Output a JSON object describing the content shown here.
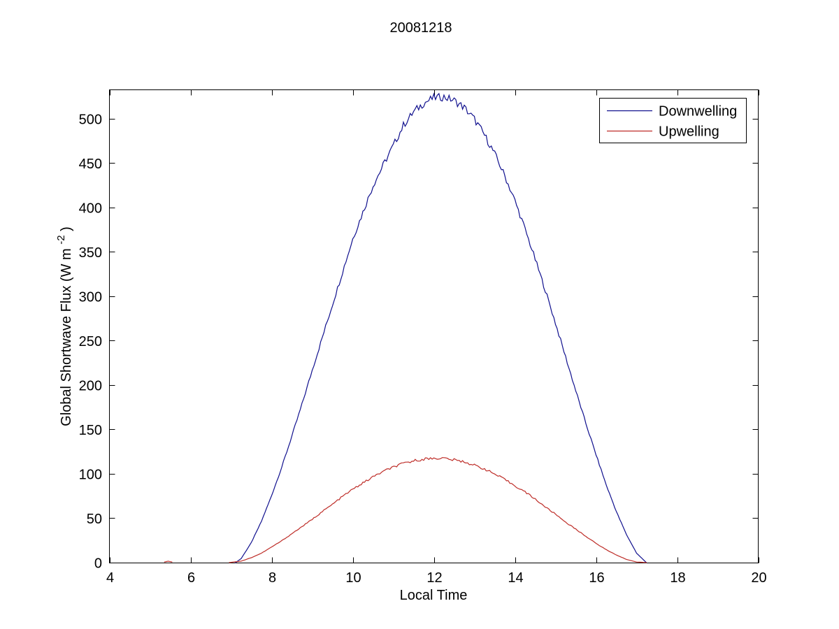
{
  "page": {
    "background": "#ffffff"
  },
  "chart_data": {
    "type": "line",
    "title": "20081218",
    "xlabel": "Local Time",
    "ylabel": {
      "prefix": "Global Shortwave Flux (W m",
      "superscript": "-2",
      "suffix": ")"
    },
    "xlim": [
      4,
      20
    ],
    "ylim": [
      0,
      533
    ],
    "xticks": [
      4,
      6,
      8,
      10,
      12,
      14,
      16,
      18,
      20
    ],
    "yticks": [
      0,
      50,
      100,
      150,
      200,
      250,
      300,
      350,
      400,
      450,
      500
    ],
    "grid": false,
    "axis_color": "#000000",
    "legend": {
      "position": "top-right",
      "entries": [
        {
          "label": "Downwelling",
          "color": "#10108E"
        },
        {
          "label": "Upwelling",
          "color": "#BE2D28"
        }
      ]
    },
    "series": [
      {
        "name": "Downwelling",
        "color": "#10108E",
        "noise_amplitude": 4.5,
        "points": [
          [
            7.1,
            0
          ],
          [
            7.25,
            5
          ],
          [
            7.5,
            23
          ],
          [
            7.75,
            47
          ],
          [
            8,
            76
          ],
          [
            8.25,
            108
          ],
          [
            8.5,
            143
          ],
          [
            8.75,
            179
          ],
          [
            9,
            217
          ],
          [
            9.25,
            254
          ],
          [
            9.5,
            291
          ],
          [
            9.75,
            328
          ],
          [
            10,
            365
          ],
          [
            10.25,
            395
          ],
          [
            10.5,
            425
          ],
          [
            10.75,
            448
          ],
          [
            11,
            470
          ],
          [
            11.25,
            493
          ],
          [
            11.5,
            508
          ],
          [
            11.75,
            518
          ],
          [
            12,
            524
          ],
          [
            12.25,
            525
          ],
          [
            12.5,
            521
          ],
          [
            12.75,
            513
          ],
          [
            13,
            500
          ],
          [
            13.25,
            482
          ],
          [
            13.5,
            461
          ],
          [
            13.75,
            436
          ],
          [
            14,
            408
          ],
          [
            14.25,
            376
          ],
          [
            14.5,
            342
          ],
          [
            14.75,
            307
          ],
          [
            15,
            270
          ],
          [
            15.25,
            232
          ],
          [
            15.5,
            194
          ],
          [
            15.75,
            157
          ],
          [
            16,
            122
          ],
          [
            16.25,
            88
          ],
          [
            16.5,
            58
          ],
          [
            16.75,
            32
          ],
          [
            17,
            11
          ],
          [
            17.25,
            0
          ]
        ]
      },
      {
        "name": "Upwelling",
        "color": "#BE2D28",
        "noise_amplitude": 1.5,
        "points": [
          [
            5.35,
            1
          ],
          [
            5.45,
            2
          ],
          [
            5.55,
            1
          ],
          null,
          [
            6.95,
            0.5
          ],
          [
            7.25,
            2
          ],
          [
            7.5,
            6
          ],
          [
            7.75,
            11
          ],
          [
            8,
            18
          ],
          [
            8.25,
            25
          ],
          [
            8.5,
            33
          ],
          [
            8.75,
            41
          ],
          [
            9,
            49
          ],
          [
            9.25,
            58
          ],
          [
            9.5,
            66
          ],
          [
            9.75,
            75
          ],
          [
            10,
            83
          ],
          [
            10.25,
            90
          ],
          [
            10.5,
            97
          ],
          [
            10.75,
            103
          ],
          [
            11,
            108
          ],
          [
            11.25,
            112
          ],
          [
            11.5,
            115
          ],
          [
            11.75,
            117
          ],
          [
            12,
            118
          ],
          [
            12.25,
            118
          ],
          [
            12.5,
            116
          ],
          [
            12.75,
            114
          ],
          [
            13,
            110
          ],
          [
            13.25,
            106
          ],
          [
            13.5,
            100
          ],
          [
            13.75,
            94
          ],
          [
            14,
            87
          ],
          [
            14.25,
            80
          ],
          [
            14.5,
            72
          ],
          [
            14.75,
            63
          ],
          [
            15,
            55
          ],
          [
            15.25,
            46
          ],
          [
            15.5,
            38
          ],
          [
            15.75,
            30
          ],
          [
            16,
            22
          ],
          [
            16.25,
            15
          ],
          [
            16.5,
            9
          ],
          [
            16.75,
            4
          ],
          [
            17,
            1
          ],
          [
            17.25,
            0.5
          ]
        ]
      }
    ]
  }
}
